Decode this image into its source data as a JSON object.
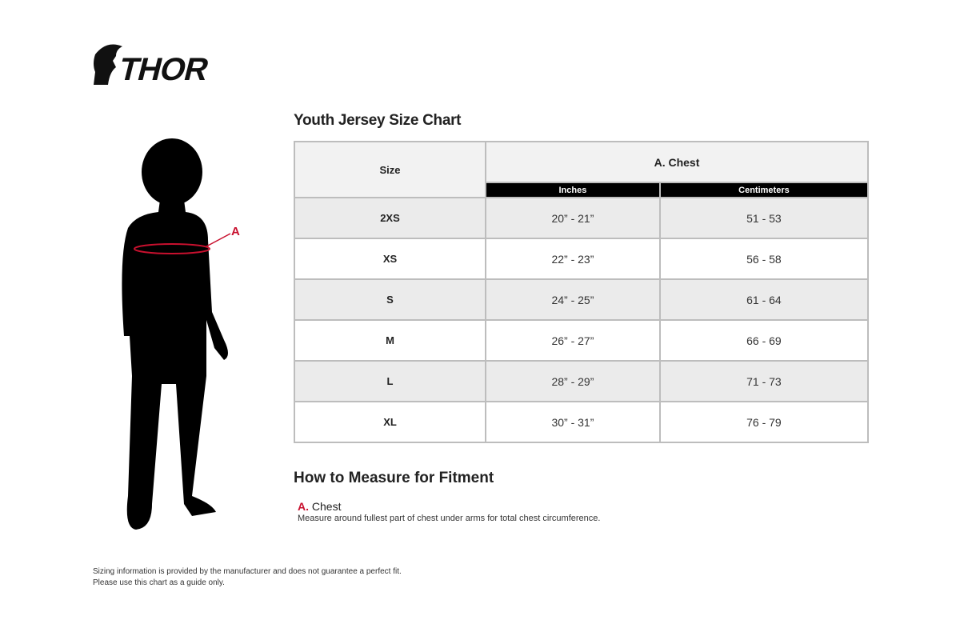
{
  "logo": {
    "text": "THOR"
  },
  "title": "Youth Jersey Size Chart",
  "table": {
    "size_header": "Size",
    "group_header": "A. Chest",
    "sub_headers": [
      "Inches",
      "Centimeters"
    ],
    "rows": [
      {
        "size": "2XS",
        "inches": "20” - 21”",
        "cm": "51 - 53"
      },
      {
        "size": "XS",
        "inches": "22” - 23”",
        "cm": "56 - 58"
      },
      {
        "size": "S",
        "inches": "24” - 25”",
        "cm": "61 - 64"
      },
      {
        "size": "M",
        "inches": "26” - 27”",
        "cm": "66 - 69"
      },
      {
        "size": "L",
        "inches": "28” - 29”",
        "cm": "71 - 73"
      },
      {
        "size": "XL",
        "inches": "30” - 31”",
        "cm": "76 - 79"
      }
    ]
  },
  "figure": {
    "marker": "A",
    "accent": "#c8102e"
  },
  "how_to": {
    "title": "How to Measure for Fitment",
    "items": [
      {
        "letter": "A.",
        "label": "Chest",
        "desc": "Measure around fullest part of chest under arms for total chest circumference."
      }
    ]
  },
  "disclaimer": [
    "Sizing information is provided by the manufacturer and does not guarantee a perfect fit.",
    "Please use this chart as a guide only."
  ]
}
